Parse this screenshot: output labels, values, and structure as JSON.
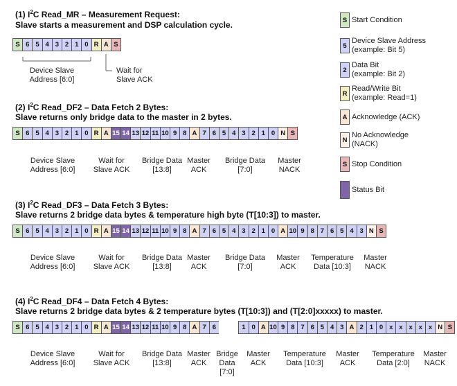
{
  "sections": [
    {
      "title_num": "(1) I",
      "title_sup": "2",
      "title_rest": "C Read_MR – Measurement Request:",
      "subtitle": "Slave starts a measurement and DSP calculation cycle.",
      "cells": [
        {
          "t": "S",
          "c": "S"
        },
        {
          "t": "6",
          "c": "D"
        },
        {
          "t": "5",
          "c": "D"
        },
        {
          "t": "4",
          "c": "D"
        },
        {
          "t": "3",
          "c": "D"
        },
        {
          "t": "2",
          "c": "D"
        },
        {
          "t": "1",
          "c": "D"
        },
        {
          "t": "0",
          "c": "D"
        },
        {
          "t": "R",
          "c": "R"
        },
        {
          "t": "A",
          "c": "A"
        },
        {
          "t": "S",
          "c": "P"
        }
      ],
      "labels": [
        {
          "line1": "Device Slave",
          "line2": "Address [6:0]"
        },
        {
          "line1": "Wait for",
          "line2": "Slave ACK"
        }
      ]
    },
    {
      "title_num": "(2) I",
      "title_sup": "2",
      "title_rest": "C Read_DF2 – Data Fetch 2 Bytes:",
      "subtitle": "Slave returns only bridge data to the master in 2 bytes.",
      "cells": [
        {
          "t": "S",
          "c": "S"
        },
        {
          "t": "6",
          "c": "D"
        },
        {
          "t": "5",
          "c": "D"
        },
        {
          "t": "4",
          "c": "D"
        },
        {
          "t": "3",
          "c": "D"
        },
        {
          "t": "2",
          "c": "D"
        },
        {
          "t": "1",
          "c": "D"
        },
        {
          "t": "0",
          "c": "D"
        },
        {
          "t": "R",
          "c": "R"
        },
        {
          "t": "A",
          "c": "A"
        },
        {
          "t": "15",
          "c": "B"
        },
        {
          "t": "14",
          "c": "B"
        },
        {
          "t": "13",
          "c": "D"
        },
        {
          "t": "12",
          "c": "D"
        },
        {
          "t": "11",
          "c": "D"
        },
        {
          "t": "10",
          "c": "D"
        },
        {
          "t": "9",
          "c": "D"
        },
        {
          "t": "8",
          "c": "D"
        },
        {
          "t": "A",
          "c": "A"
        },
        {
          "t": "7",
          "c": "D"
        },
        {
          "t": "6",
          "c": "D"
        },
        {
          "t": "5",
          "c": "D"
        },
        {
          "t": "4",
          "c": "D"
        },
        {
          "t": "3",
          "c": "D"
        },
        {
          "t": "2",
          "c": "D"
        },
        {
          "t": "1",
          "c": "D"
        },
        {
          "t": "0",
          "c": "D"
        },
        {
          "t": "N",
          "c": "N"
        },
        {
          "t": "S",
          "c": "P"
        }
      ],
      "labels": [
        {
          "line1": "Device Slave",
          "line2": "Address [6:0]"
        },
        {
          "line1": "Wait for",
          "line2": "Slave ACK"
        },
        {
          "line1": "Bridge Data",
          "line2": "[13:8]"
        },
        {
          "line1": "Master",
          "line2": "ACK"
        },
        {
          "line1": "Bridge Data",
          "line2": "[7:0]"
        },
        {
          "line1": "Master",
          "line2": "NACK"
        }
      ]
    },
    {
      "title_num": "(3) I",
      "title_sup": "2",
      "title_rest": "C Read_DF3 – Data Fetch 3 Bytes:",
      "subtitle": "Slave returns 2 bridge data bytes & temperature high byte (T[10:3]) to master.",
      "cells": [
        {
          "t": "S",
          "c": "S"
        },
        {
          "t": "6",
          "c": "D"
        },
        {
          "t": "5",
          "c": "D"
        },
        {
          "t": "4",
          "c": "D"
        },
        {
          "t": "3",
          "c": "D"
        },
        {
          "t": "2",
          "c": "D"
        },
        {
          "t": "1",
          "c": "D"
        },
        {
          "t": "0",
          "c": "D"
        },
        {
          "t": "R",
          "c": "R"
        },
        {
          "t": "A",
          "c": "A"
        },
        {
          "t": "15",
          "c": "B"
        },
        {
          "t": "14",
          "c": "B"
        },
        {
          "t": "13",
          "c": "D"
        },
        {
          "t": "12",
          "c": "D"
        },
        {
          "t": "11",
          "c": "D"
        },
        {
          "t": "10",
          "c": "D"
        },
        {
          "t": "9",
          "c": "D"
        },
        {
          "t": "8",
          "c": "D"
        },
        {
          "t": "A",
          "c": "A"
        },
        {
          "t": "7",
          "c": "D"
        },
        {
          "t": "6",
          "c": "D"
        },
        {
          "t": "5",
          "c": "D"
        },
        {
          "t": "4",
          "c": "D"
        },
        {
          "t": "3",
          "c": "D"
        },
        {
          "t": "2",
          "c": "D"
        },
        {
          "t": "1",
          "c": "D"
        },
        {
          "t": "0",
          "c": "D"
        },
        {
          "t": "A",
          "c": "A"
        },
        {
          "t": "10",
          "c": "D"
        },
        {
          "t": "9",
          "c": "D"
        },
        {
          "t": "8",
          "c": "D"
        },
        {
          "t": "7",
          "c": "D"
        },
        {
          "t": "6",
          "c": "D"
        },
        {
          "t": "5",
          "c": "D"
        },
        {
          "t": "4",
          "c": "D"
        },
        {
          "t": "3",
          "c": "D"
        },
        {
          "t": "N",
          "c": "N"
        },
        {
          "t": "S",
          "c": "P"
        }
      ],
      "labels": [
        {
          "line1": "Device Slave",
          "line2": "Address [6:0]"
        },
        {
          "line1": "Wait for",
          "line2": "Slave ACK"
        },
        {
          "line1": "Bridge Data",
          "line2": "[13:8]"
        },
        {
          "line1": "Master",
          "line2": "ACK"
        },
        {
          "line1": "Bridge Data",
          "line2": "[7:0]"
        },
        {
          "line1": "Master",
          "line2": "ACK"
        },
        {
          "line1": "Temperature",
          "line2": "Data [10:3]"
        },
        {
          "line1": "Master",
          "line2": "NACK"
        }
      ]
    },
    {
      "title_num": "(4) I",
      "title_sup": "2",
      "title_rest": "C Read_DF4 – Data Fetch 4 Bytes:",
      "subtitle": "Slave returns 2 bridge data bytes & 2 temperature bytes (T[10:3]) and (T[2:0]xxxxx) to master.",
      "cells": [
        {
          "t": "S",
          "c": "S"
        },
        {
          "t": "6",
          "c": "D"
        },
        {
          "t": "5",
          "c": "D"
        },
        {
          "t": "4",
          "c": "D"
        },
        {
          "t": "3",
          "c": "D"
        },
        {
          "t": "2",
          "c": "D"
        },
        {
          "t": "1",
          "c": "D"
        },
        {
          "t": "0",
          "c": "D"
        },
        {
          "t": "R",
          "c": "R"
        },
        {
          "t": "A",
          "c": "A"
        },
        {
          "t": "15",
          "c": "B"
        },
        {
          "t": "14",
          "c": "B"
        },
        {
          "t": "13",
          "c": "D"
        },
        {
          "t": "12",
          "c": "D"
        },
        {
          "t": "11",
          "c": "D"
        },
        {
          "t": "10",
          "c": "D"
        },
        {
          "t": "9",
          "c": "D"
        },
        {
          "t": "8",
          "c": "D"
        },
        {
          "t": "A",
          "c": "A"
        },
        {
          "t": "7",
          "c": "D"
        },
        {
          "t": "6",
          "c": "D"
        },
        {
          "t": "",
          "c": "G"
        },
        {
          "t": "",
          "c": "G"
        },
        {
          "t": "1",
          "c": "D"
        },
        {
          "t": "0",
          "c": "D"
        },
        {
          "t": "A",
          "c": "A"
        },
        {
          "t": "10",
          "c": "D"
        },
        {
          "t": "9",
          "c": "D"
        },
        {
          "t": "8",
          "c": "D"
        },
        {
          "t": "7",
          "c": "D"
        },
        {
          "t": "6",
          "c": "D"
        },
        {
          "t": "5",
          "c": "D"
        },
        {
          "t": "4",
          "c": "D"
        },
        {
          "t": "3",
          "c": "D"
        },
        {
          "t": "A",
          "c": "A"
        },
        {
          "t": "2",
          "c": "D"
        },
        {
          "t": "1",
          "c": "D"
        },
        {
          "t": "0",
          "c": "D"
        },
        {
          "t": "x",
          "c": "D"
        },
        {
          "t": "x",
          "c": "D"
        },
        {
          "t": "x",
          "c": "D"
        },
        {
          "t": "x",
          "c": "D"
        },
        {
          "t": "x",
          "c": "D"
        },
        {
          "t": "N",
          "c": "N"
        },
        {
          "t": "S",
          "c": "P"
        }
      ],
      "labels": [
        {
          "line1": "Device Slave",
          "line2": "Address [6:0]"
        },
        {
          "line1": "Wait for",
          "line2": "Slave ACK"
        },
        {
          "line1": "Bridge Data",
          "line2": "[13:8]"
        },
        {
          "line1": "Master",
          "line2": "ACK"
        },
        {
          "line1": "Bridge",
          "line2": "Data",
          "line3": "[7:0]"
        },
        {
          "line1": "Master",
          "line2": "ACK"
        },
        {
          "line1": "Temperature",
          "line2": "Data [10:3]"
        },
        {
          "line1": "Master",
          "line2": "ACK"
        },
        {
          "line1": "Temperature",
          "line2": "Data [2:0]"
        },
        {
          "line1": "Master",
          "line2": "NACK"
        }
      ]
    }
  ],
  "legend": [
    {
      "letter": "S",
      "c": "S",
      "line1": "Start Condition",
      "line2": ""
    },
    {
      "letter": "5",
      "c": "D",
      "line1": "Device Slave Address",
      "line2": "(example: Bit 5)"
    },
    {
      "letter": "2",
      "c": "D",
      "line1": "Data Bit",
      "line2": "(example: Bit 2)"
    },
    {
      "letter": "R",
      "c": "R",
      "line1": "Read/Write Bit",
      "line2": "(example: Read=1)"
    },
    {
      "letter": "A",
      "c": "A",
      "line1": "Acknowledge (ACK)",
      "line2": ""
    },
    {
      "letter": "N",
      "c": "N",
      "line1": "No Acknowledge",
      "line2": "(NACK)"
    },
    {
      "letter": "S",
      "c": "P",
      "line1": "Stop Condition",
      "line2": ""
    },
    {
      "letter": "",
      "c": "B",
      "line1": "Status Bit",
      "line2": ""
    }
  ]
}
